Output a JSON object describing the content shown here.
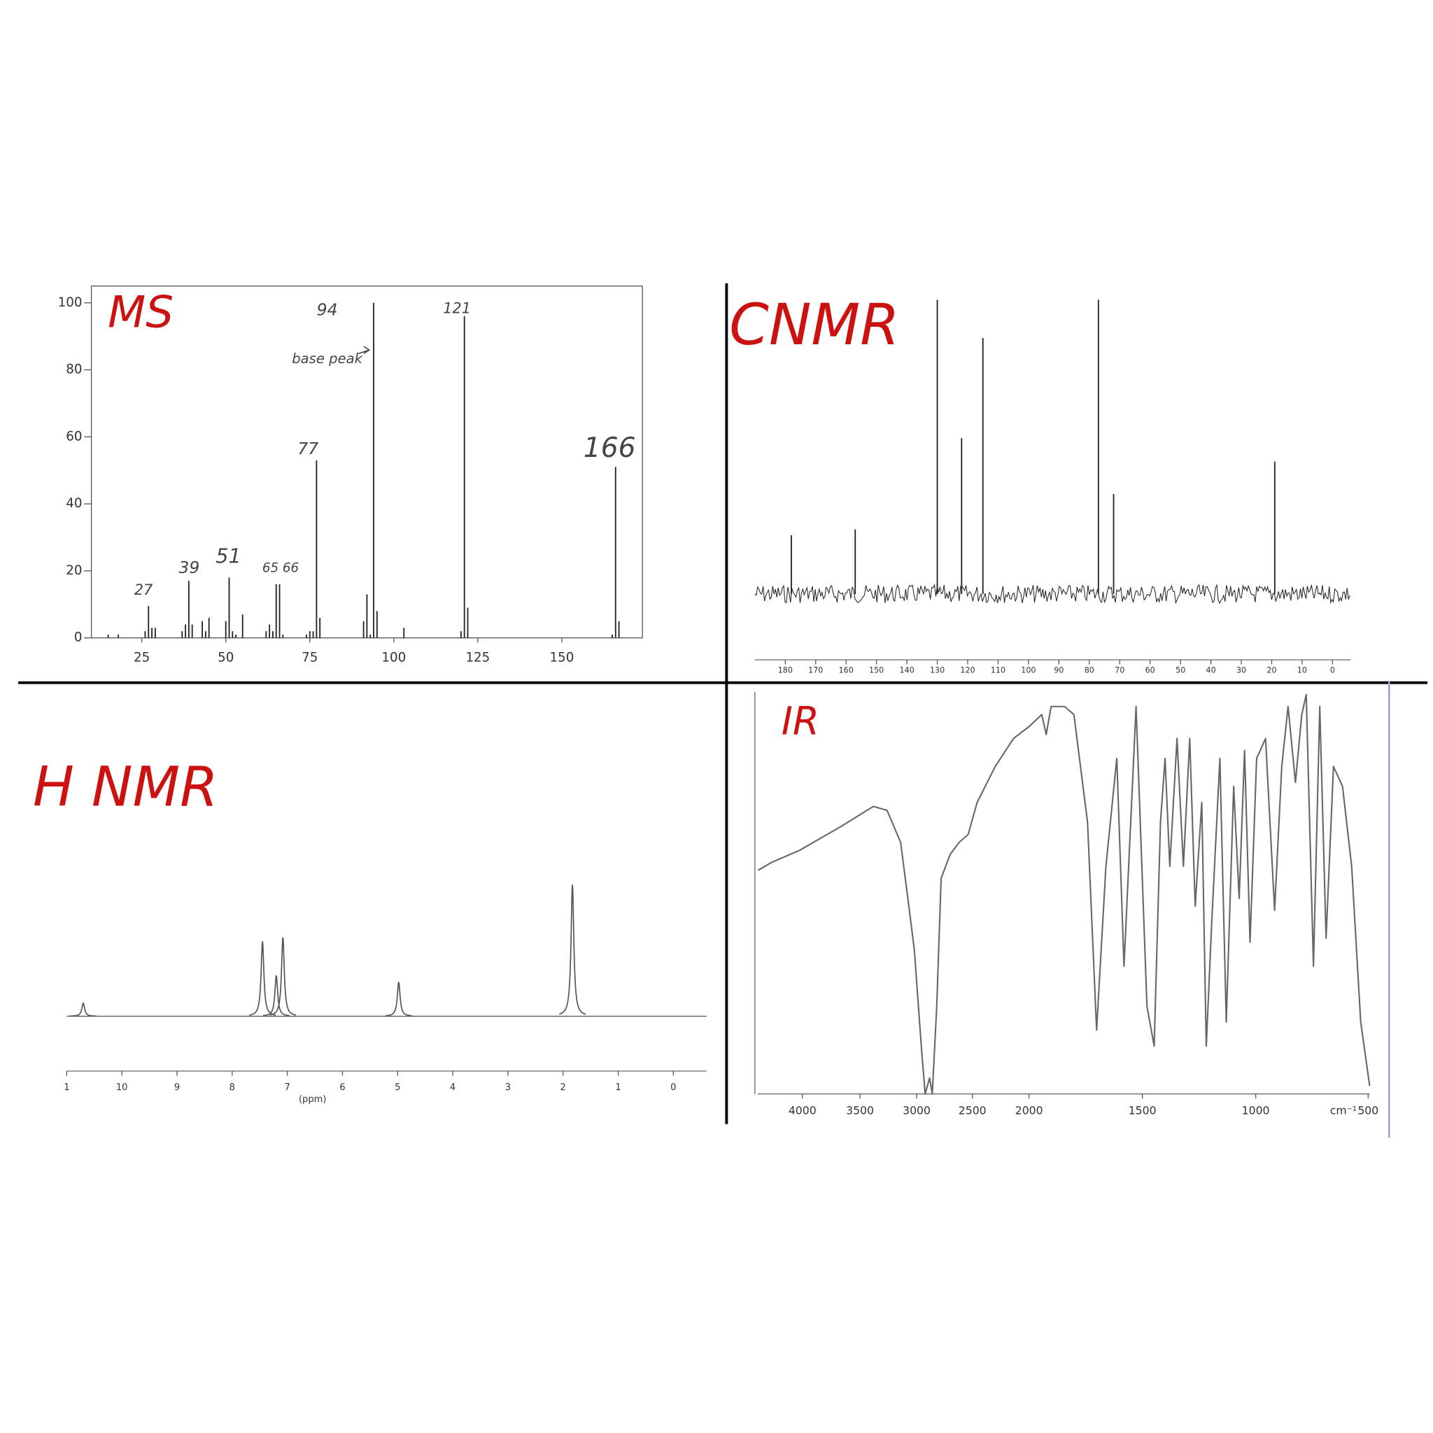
{
  "chart_data": [
    {
      "type": "bar",
      "title": "MS",
      "color": "#222222",
      "x": [
        15,
        18,
        26,
        27,
        28,
        29,
        37,
        38,
        39,
        40,
        43,
        44,
        45,
        50,
        51,
        52,
        53,
        55,
        62,
        63,
        64,
        65,
        66,
        67,
        74,
        75,
        76,
        77,
        78,
        91,
        92,
        93,
        94,
        95,
        103,
        120,
        121,
        122,
        165,
        166,
        167
      ],
      "values": [
        1,
        1,
        2,
        9.5,
        3,
        3,
        2,
        4,
        17,
        4,
        5,
        2,
        6,
        5,
        18,
        2,
        1,
        7,
        2,
        4,
        2,
        16,
        16,
        1,
        1,
        2,
        2,
        53,
        6,
        5,
        13,
        1,
        100,
        8,
        3,
        2,
        96,
        9,
        1,
        51,
        5
      ],
      "xlim": [
        10,
        174
      ],
      "xticks": [
        25,
        50,
        75,
        100,
        125,
        150
      ],
      "ylim": [
        0,
        105
      ],
      "yticks": [
        0,
        20,
        40,
        60,
        80,
        100
      ],
      "annotations": [
        "94",
        "base peak",
        "121",
        "77",
        "166",
        "27",
        "39",
        "51",
        "65 66"
      ]
    },
    {
      "type": "bar",
      "title": "CNMR",
      "color": "#222222",
      "x": [
        178,
        157,
        130,
        122,
        115,
        77,
        72,
        19
      ],
      "values": [
        20,
        22,
        100,
        53,
        87,
        100,
        34,
        45
      ],
      "xlim": [
        190,
        -6
      ],
      "xticks": [
        180,
        170,
        160,
        150,
        140,
        130,
        120,
        110,
        100,
        90,
        80,
        70,
        60,
        50,
        40,
        30,
        20,
        10,
        0
      ],
      "ylim": [
        0,
        100
      ]
    },
    {
      "type": "nmr",
      "title": "H NMR",
      "x_label": "(ppm)",
      "color": "#555555",
      "x": [
        10.7,
        7.45,
        7.2,
        7.08,
        4.98,
        1.83
      ],
      "values": [
        10,
        57,
        31,
        60,
        26,
        100
      ],
      "xlim": [
        11,
        -0.6
      ],
      "xticks": [
        {
          "value": 11,
          "label": "1"
        },
        10,
        9,
        8,
        7,
        6,
        5,
        4,
        3,
        2,
        1,
        0
      ],
      "ylim": [
        0,
        100
      ]
    },
    {
      "type": "line",
      "title": "IR",
      "x_label": "cm⁻¹",
      "color": "#666666",
      "x": [
        4385,
        4265,
        4024,
        3663,
        3382,
        3261,
        3141,
        3060,
        3020,
        2956,
        2924,
        2884,
        2860,
        2820,
        2780,
        2699,
        2619,
        2538,
        2458,
        2298,
        2137,
        2000,
        1944,
        1924,
        1903,
        1843,
        1802,
        1742,
        1702,
        1661,
        1613,
        1581,
        1528,
        1480,
        1448,
        1420,
        1400,
        1379,
        1347,
        1319,
        1291,
        1267,
        1238,
        1218,
        1194,
        1158,
        1130,
        1097,
        1073,
        1049,
        1025,
        996,
        956,
        916,
        884,
        856,
        823,
        795,
        775,
        743,
        715,
        687,
        654,
        614,
        573,
        533,
        493
      ],
      "values": [
        56,
        58,
        61,
        67,
        72,
        71,
        63,
        45,
        36,
        11,
        0,
        4,
        0,
        22,
        54,
        60,
        63,
        65,
        73,
        82,
        89,
        92,
        95,
        90,
        97,
        97,
        95,
        68,
        16,
        57,
        84,
        32,
        97,
        22,
        12,
        68,
        84,
        57,
        89,
        57,
        89,
        47,
        73,
        12,
        43,
        84,
        18,
        77,
        49,
        86,
        38,
        84,
        89,
        46,
        82,
        97,
        78,
        95,
        100,
        32,
        97,
        39,
        82,
        77,
        57,
        18,
        2
      ],
      "xlim": [
        4385,
        493
      ],
      "xticks": [
        4000,
        3500,
        3000,
        2500,
        2000,
        1500,
        1000,
        500
      ],
      "ylim": [
        0,
        100
      ]
    }
  ]
}
